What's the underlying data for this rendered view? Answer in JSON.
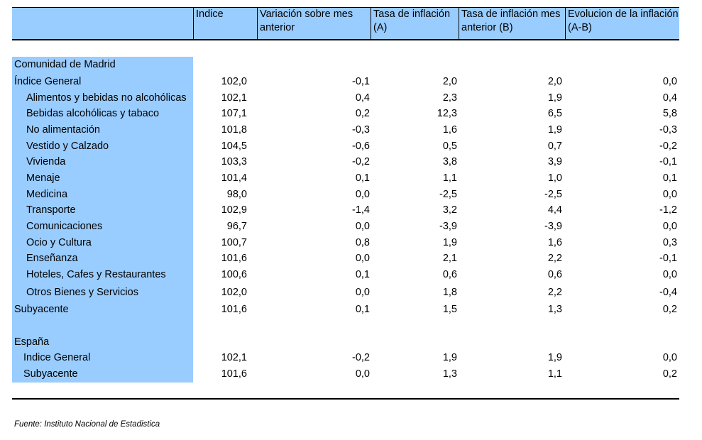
{
  "headers": [
    "Indice",
    "Variación sobre mes anterior",
    "Tasa de inflación (A)",
    "Tasa de inflación mes anterior (B)",
    "Evolucion de la inflación (A-B)"
  ],
  "sections": [
    {
      "title": "Comunidad de Madrid",
      "rows": [
        {
          "label": "Índice General",
          "values": [
            "102,0",
            "-0,1",
            "2,0",
            "2,0",
            "0,0"
          ]
        },
        {
          "label": "Alimentos y bebidas no alcohólicas",
          "values": [
            "102,1",
            "0,4",
            "2,3",
            "1,9",
            "0,4"
          ]
        },
        {
          "label": "Bebidas alcohólicas y tabaco",
          "values": [
            "107,1",
            "0,2",
            "12,3",
            "6,5",
            "5,8"
          ]
        },
        {
          "label": "No alimentación",
          "values": [
            "101,8",
            "-0,3",
            "1,6",
            "1,9",
            "-0,3"
          ]
        },
        {
          "label": "Vestido y Calzado",
          "values": [
            "104,5",
            "-0,6",
            "0,5",
            "0,7",
            "-0,2"
          ]
        },
        {
          "label": "Vivienda",
          "values": [
            "103,3",
            "-0,2",
            "3,8",
            "3,9",
            "-0,1"
          ]
        },
        {
          "label": "Menaje",
          "values": [
            "101,4",
            "0,1",
            "1,1",
            "1,0",
            "0,1"
          ]
        },
        {
          "label": "Medicina",
          "values": [
            "98,0",
            "0,0",
            "-2,5",
            "-2,5",
            "0,0"
          ]
        },
        {
          "label": "Transporte",
          "values": [
            "102,9",
            "-1,4",
            "3,2",
            "4,4",
            "-1,2"
          ]
        },
        {
          "label": "Comunicaciones",
          "values": [
            "96,7",
            "0,0",
            "-3,9",
            "-3,9",
            "0,0"
          ]
        },
        {
          "label": "Ocio y Cultura",
          "values": [
            "100,7",
            "0,8",
            "1,9",
            "1,6",
            "0,3"
          ]
        },
        {
          "label": "Enseñanza",
          "values": [
            "101,6",
            "0,0",
            "2,1",
            "2,2",
            "-0,1"
          ]
        },
        {
          "label": "Hoteles, Cafes y Restaurantes",
          "values": [
            "100,6",
            "0,1",
            "0,6",
            "0,6",
            "0,0"
          ]
        },
        {
          "label": "Otros Bienes y Servicios",
          "values": [
            "102,0",
            "0,0",
            "1,8",
            "2,2",
            "-0,4"
          ]
        },
        {
          "label": "Subyacente",
          "values": [
            "101,6",
            "0,1",
            "1,5",
            "1,3",
            "0,2"
          ]
        }
      ]
    },
    {
      "title": "España",
      "rows": [
        {
          "label": "Indice General",
          "values": [
            "102,1",
            "-0,2",
            "1,9",
            "1,9",
            "0,0"
          ]
        },
        {
          "label": "Subyacente",
          "values": [
            "101,6",
            "0,0",
            "1,3",
            "1,1",
            "0,2"
          ]
        }
      ]
    }
  ],
  "source": "Fuente: Instituto Nacional de Estadistica"
}
